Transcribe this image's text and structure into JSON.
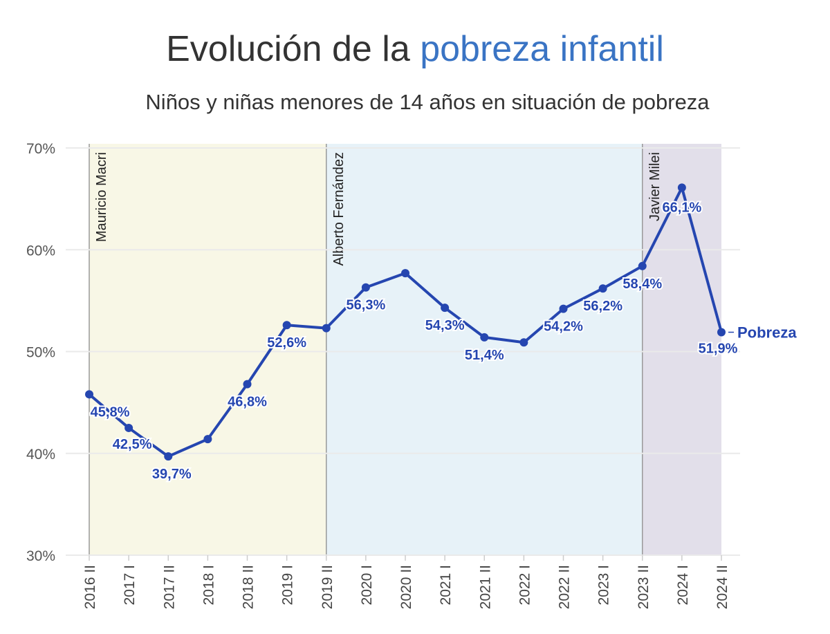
{
  "title_part1": "Evolución de la ",
  "title_part2": "pobreza infantil",
  "subtitle": "Niños y niñas menores de 14 años en situación de pobreza",
  "colors": {
    "accent": "#3a74c4",
    "line": "#2546b0",
    "title": "#333333",
    "macri": "#f8f7e6",
    "fernandez": "#e7f2f8",
    "milei": "#e2dfea"
  },
  "chart_data": {
    "type": "line",
    "title": "Evolución de la pobreza infantil",
    "subtitle": "Niños y niñas menores de 14 años en situación de pobreza",
    "xlabel": "",
    "ylabel": "",
    "ylim": [
      30,
      70
    ],
    "yticks": [
      30,
      40,
      50,
      60,
      70
    ],
    "ytick_labels": [
      "30%",
      "40%",
      "50%",
      "60%",
      "70%"
    ],
    "grid": true,
    "categories": [
      "2016 II",
      "2017 I",
      "2017 II",
      "2018 I",
      "2018 II",
      "2019 I",
      "2019 II",
      "2020 I",
      "2020 II",
      "2021 I",
      "2021 II",
      "2022 I",
      "2022 II",
      "2023 I",
      "2023 II",
      "2024 I",
      "2024 II"
    ],
    "series": [
      {
        "name": "Pobreza",
        "values": [
          45.8,
          42.5,
          39.7,
          41.4,
          46.8,
          52.6,
          52.3,
          56.3,
          57.7,
          54.3,
          51.4,
          50.9,
          54.2,
          56.2,
          58.4,
          66.1,
          51.9
        ],
        "labels": [
          "45,8%",
          "42,5%",
          "39,7%",
          "",
          "46,8%",
          "52,6%",
          "",
          "56,3%",
          "",
          "54,3%",
          "51,4%",
          "",
          "54,2%",
          "56,2%",
          "58,4%",
          "66,1%",
          "51,9%"
        ]
      }
    ],
    "periods": [
      {
        "name": "Mauricio Macri",
        "start": "2016 II",
        "end": "2019 II"
      },
      {
        "name": "Alberto Fernández",
        "start": "2019 II",
        "end": "2023 II"
      },
      {
        "name": "Javier Milei",
        "start": "2023 II",
        "end": "2024 II"
      }
    ]
  }
}
